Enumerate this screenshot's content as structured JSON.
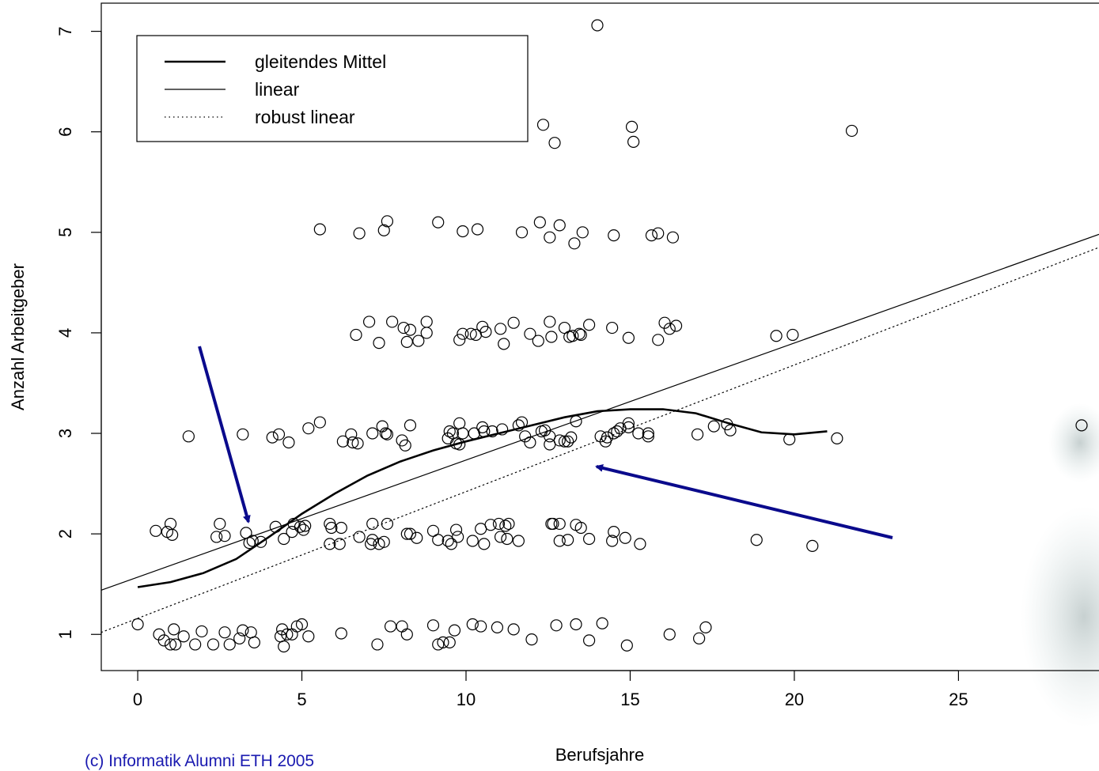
{
  "chart_data": {
    "type": "scatter",
    "xlabel": "Berufsjahre",
    "ylabel": "Anzahl Arbeitgeber",
    "credit": "(c) Informatik Alumni ETH 2005",
    "xlim": [
      -1.11,
      29.28
    ],
    "ylim": [
      0.64,
      7.28
    ],
    "xticks": [
      0,
      5,
      10,
      15,
      20,
      25
    ],
    "yticks": [
      1,
      2,
      3,
      4,
      5,
      6,
      7
    ],
    "legend_position": "top-left",
    "point_color": "#000000",
    "x": [
      0.0,
      0.65,
      0.8,
      1.0,
      1.1,
      1.15,
      1.4,
      1.75,
      1.95,
      2.3,
      2.65,
      2.8,
      3.1,
      3.2,
      3.45,
      3.55,
      4.35,
      4.4,
      4.45,
      4.55,
      4.7,
      4.85,
      5.0,
      5.2,
      6.2,
      7.3,
      7.7,
      8.05,
      8.2,
      9.0,
      9.15,
      9.3,
      9.5,
      9.65,
      10.2,
      10.45,
      10.95,
      11.45,
      12.0,
      12.75,
      13.35,
      13.75,
      14.15,
      14.9,
      16.2,
      17.1,
      17.3,
      0.55,
      0.9,
      1.0,
      1.05,
      2.4,
      2.5,
      2.65,
      3.3,
      3.4,
      3.5,
      3.75,
      4.2,
      4.45,
      4.7,
      4.75,
      4.95,
      5.1,
      5.05,
      5.85,
      5.85,
      5.9,
      6.2,
      6.15,
      6.75,
      7.1,
      7.15,
      7.15,
      7.35,
      7.5,
      7.6,
      8.2,
      8.3,
      8.5,
      9.0,
      9.15,
      9.45,
      9.55,
      9.7,
      9.75,
      10.2,
      10.45,
      10.55,
      10.75,
      11.0,
      11.05,
      11.2,
      11.25,
      11.3,
      11.6,
      12.6,
      12.65,
      12.85,
      12.85,
      13.1,
      13.35,
      13.5,
      13.75,
      14.45,
      14.5,
      14.85,
      15.3,
      18.85,
      20.55,
      1.55,
      3.2,
      4.1,
      4.3,
      4.6,
      5.2,
      5.55,
      6.25,
      6.5,
      6.55,
      6.7,
      7.15,
      7.45,
      7.55,
      7.6,
      8.05,
      8.15,
      8.3,
      9.45,
      9.5,
      9.6,
      9.7,
      9.8,
      9.8,
      9.9,
      10.25,
      10.5,
      10.55,
      10.8,
      11.1,
      11.6,
      11.7,
      11.8,
      11.95,
      12.3,
      12.4,
      12.55,
      12.55,
      12.85,
      13.0,
      13.1,
      13.2,
      13.35,
      14.1,
      14.25,
      14.3,
      14.5,
      14.6,
      14.7,
      14.95,
      14.95,
      15.25,
      15.55,
      15.55,
      17.05,
      17.55,
      17.95,
      18.05,
      19.85,
      21.3,
      28.75,
      6.65,
      7.05,
      7.35,
      7.75,
      8.1,
      8.2,
      8.3,
      8.55,
      8.8,
      8.8,
      9.8,
      9.9,
      10.15,
      10.3,
      10.5,
      10.6,
      11.05,
      11.15,
      11.45,
      11.95,
      12.2,
      12.55,
      12.6,
      13.0,
      13.15,
      13.25,
      13.45,
      13.5,
      13.75,
      14.45,
      14.95,
      15.85,
      16.05,
      16.2,
      16.4,
      19.45,
      19.95,
      5.55,
      6.75,
      7.5,
      7.6,
      9.15,
      9.9,
      10.35,
      11.7,
      12.25,
      12.55,
      12.85,
      13.3,
      13.55,
      14.5,
      15.65,
      15.85,
      16.3,
      12.35,
      12.7,
      15.05,
      15.1,
      21.75,
      14.0
    ],
    "values": [
      1.1,
      1.0,
      0.94,
      0.9,
      1.05,
      0.9,
      0.98,
      0.9,
      1.03,
      0.9,
      1.02,
      0.9,
      0.96,
      1.04,
      1.02,
      0.92,
      0.98,
      1.05,
      0.88,
      1.0,
      1.0,
      1.08,
      1.1,
      0.98,
      1.01,
      0.9,
      1.08,
      1.08,
      1.0,
      1.09,
      0.9,
      0.92,
      0.92,
      1.04,
      1.1,
      1.08,
      1.07,
      1.05,
      0.95,
      1.09,
      1.1,
      0.94,
      1.11,
      0.89,
      1.0,
      0.96,
      1.07,
      2.03,
      2.02,
      2.1,
      1.99,
      1.97,
      2.1,
      1.98,
      2.01,
      1.91,
      1.93,
      1.92,
      2.07,
      1.95,
      2.02,
      2.1,
      2.07,
      2.08,
      2.04,
      2.1,
      1.9,
      2.06,
      2.06,
      1.9,
      1.97,
      1.9,
      1.94,
      2.1,
      1.9,
      1.92,
      2.1,
      2.0,
      2.0,
      1.96,
      2.03,
      1.94,
      1.93,
      1.9,
      2.04,
      1.97,
      1.93,
      2.05,
      1.9,
      2.09,
      2.1,
      1.97,
      2.08,
      1.95,
      2.1,
      1.93,
      2.1,
      2.1,
      2.1,
      1.93,
      1.94,
      2.09,
      2.06,
      1.95,
      1.93,
      2.02,
      1.96,
      1.9,
      1.94,
      1.88,
      2.97,
      2.99,
      2.96,
      2.99,
      2.91,
      3.05,
      3.11,
      2.92,
      2.99,
      2.91,
      2.9,
      3.0,
      3.07,
      3.0,
      2.99,
      2.93,
      2.88,
      3.08,
      2.95,
      3.02,
      3.0,
      2.9,
      2.89,
      3.1,
      3.0,
      3.0,
      3.06,
      3.02,
      3.02,
      3.04,
      3.08,
      3.11,
      2.97,
      2.91,
      3.02,
      3.03,
      2.97,
      2.89,
      2.93,
      2.92,
      2.92,
      2.96,
      3.12,
      2.97,
      2.92,
      2.96,
      3.0,
      3.02,
      3.05,
      3.1,
      3.06,
      3.0,
      2.97,
      3.0,
      2.99,
      3.07,
      3.09,
      3.03,
      2.94,
      2.95,
      3.08,
      3.98,
      4.11,
      3.9,
      4.11,
      4.05,
      3.91,
      4.03,
      3.92,
      4.11,
      4.0,
      3.93,
      3.99,
      3.99,
      3.98,
      4.06,
      4.01,
      4.04,
      3.89,
      4.1,
      3.99,
      3.92,
      4.11,
      3.96,
      4.05,
      3.96,
      3.97,
      3.99,
      3.98,
      4.08,
      4.05,
      3.95,
      3.93,
      4.1,
      4.04,
      4.07,
      3.97,
      3.98,
      5.03,
      4.99,
      5.02,
      5.11,
      5.1,
      5.01,
      5.03,
      5.0,
      5.1,
      4.95,
      5.07,
      4.89,
      5.0,
      4.97,
      4.97,
      4.99,
      4.95,
      6.07,
      5.89,
      6.05,
      5.9,
      6.01,
      7.06
    ],
    "lines": [
      {
        "name": "gleitendes Mittel",
        "color": "#000000",
        "linestyle": "solid",
        "linewidth": 2.6,
        "x": [
          0,
          1,
          2,
          3,
          4,
          5,
          6,
          7,
          8,
          9,
          10,
          11,
          12,
          13,
          14,
          15,
          16,
          17,
          18,
          19,
          20,
          21
        ],
        "values": [
          1.47,
          1.52,
          1.61,
          1.75,
          1.97,
          2.2,
          2.4,
          2.58,
          2.72,
          2.83,
          2.92,
          3.0,
          3.08,
          3.16,
          3.22,
          3.24,
          3.24,
          3.2,
          3.1,
          3.01,
          2.99,
          3.02
        ]
      },
      {
        "name": "linear",
        "color": "#000000",
        "linestyle": "solid",
        "linewidth": 1.2,
        "x": [
          -1.11,
          29.28
        ],
        "values": [
          1.44,
          4.98
        ]
      },
      {
        "name": "robust linear",
        "color": "#000000",
        "linestyle": "dotted",
        "linewidth": 1.2,
        "x": [
          -1.11,
          29.28
        ],
        "values": [
          1.02,
          4.85
        ]
      }
    ]
  }
}
